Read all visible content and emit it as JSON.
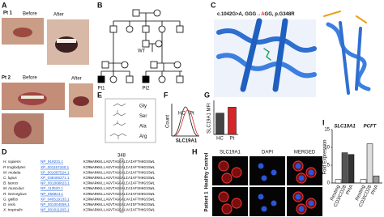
{
  "panel_labels": [
    "A",
    "B",
    "C",
    "D",
    "E",
    "F",
    "G",
    "H",
    "I"
  ],
  "panel_a": {
    "patient1": "Pt 1",
    "patient2": "Pt 2",
    "before": "Before",
    "after": "After"
  },
  "panel_b": {
    "wt": "WT",
    "pt1": "Pt1",
    "pt2": "Pt2"
  },
  "panel_c": {
    "mutation_prefix": "c.1042G>A, GGG→",
    "mutation_base": "A",
    "mutation_suffix": "GG, p.G348R"
  },
  "panel_d": {
    "position": "348",
    "rows": [
      {
        "species": "H. sapiens",
        "accession": "NP_919231.1",
        "sequence": "KIRWARKKLLAGVTAGGALIAIAFTHHGSSWL"
      },
      {
        "species": "P. troglodytes",
        "accession": "XP_001157340.1",
        "sequence": "KIRWARKKLLAGVTAGGALIAIAFTHHGSSWL"
      },
      {
        "species": "M. mulatta",
        "accession": "XP_001097524.1",
        "sequence": "KIRWARKKLLAGVTAGGALIAIAFTHHGSSWL"
      },
      {
        "species": "C. lupus",
        "accession": "XP_038406371.1",
        "sequence": "KIRWARKKLLAGVTAGGALIAIAFTHHGSSWL"
      },
      {
        "species": "B. taurus",
        "accession": "NP_001068823.1",
        "sequence": "KIRWARKKLLAGVTAGGALIAIAFTHHGSSWL"
      },
      {
        "species": "M. musculus",
        "accession": "NP_113520.1",
        "sequence": "KIRWARKKLLAGVTAGGALIAIAFSHHGSSWL"
      },
      {
        "species": "R. Norvegicus",
        "accession": "NP_058824.1",
        "sequence": "KIRWARKKLLAGVTAGGALIAIAFSHHGSSWL"
      },
      {
        "species": "G. gallus",
        "accession": "XP_040519133.1",
        "sequence": "KIRWARKKLLAGVTAGGALVAIAFTHHGSSWL"
      },
      {
        "species": "D. rerio",
        "accession": "NP_001004559.1",
        "sequence": "KIRWARKKLLAGVTAGGALVAISFTHHGSSWL"
      },
      {
        "species": "X. tropicalis",
        "accession": "NP_001011203.1",
        "sequence": "KIRWARKKLLAGVTAGGALVAIAFTHHGSSWL"
      }
    ]
  },
  "panel_e": {
    "amino_acids": [
      "Gly",
      "Ser",
      "Ala",
      "Arg"
    ]
  },
  "panel_f": {
    "groups": [
      "HC",
      "Pt"
    ],
    "colors": [
      "#222222",
      "#d62728"
    ],
    "y_label": "Count",
    "x_label": "SLC19A1"
  },
  "panel_g": {
    "type": "bar",
    "y_label": "SLC19A1 MFI",
    "categories": [
      "HC",
      "Pt"
    ],
    "values": [
      2500,
      3200
    ],
    "colors": [
      "#444444",
      "#d62728"
    ],
    "ylim": [
      0,
      4000
    ]
  },
  "panel_h": {
    "columns": [
      "SLC19A1",
      "DAPI",
      "MERGED"
    ],
    "column_colors": [
      "#d62728",
      "#1f5fd6",
      "#222222"
    ],
    "rows": [
      "Healthy Control",
      "Patient 1"
    ]
  },
  "panel_i": {
    "type": "bar",
    "y_label": "Fold Expression",
    "groups": [
      "SLC19A1",
      "PCFT"
    ],
    "categories": [
      "Resting",
      "CD3/CD28",
      "PHA"
    ],
    "series": [
      {
        "name": "SLC19A1",
        "colors": [
          "#ffffff",
          "#555555",
          "#333333"
        ],
        "values": [
          1,
          8.5,
          8
        ]
      },
      {
        "name": "PCFT",
        "colors": [
          "#ffffff",
          "#dddddd",
          "#999999"
        ],
        "values": [
          1,
          11,
          2
        ]
      }
    ],
    "ylim": [
      0,
      15
    ],
    "yticks": [
      0,
      5,
      10,
      15
    ]
  }
}
